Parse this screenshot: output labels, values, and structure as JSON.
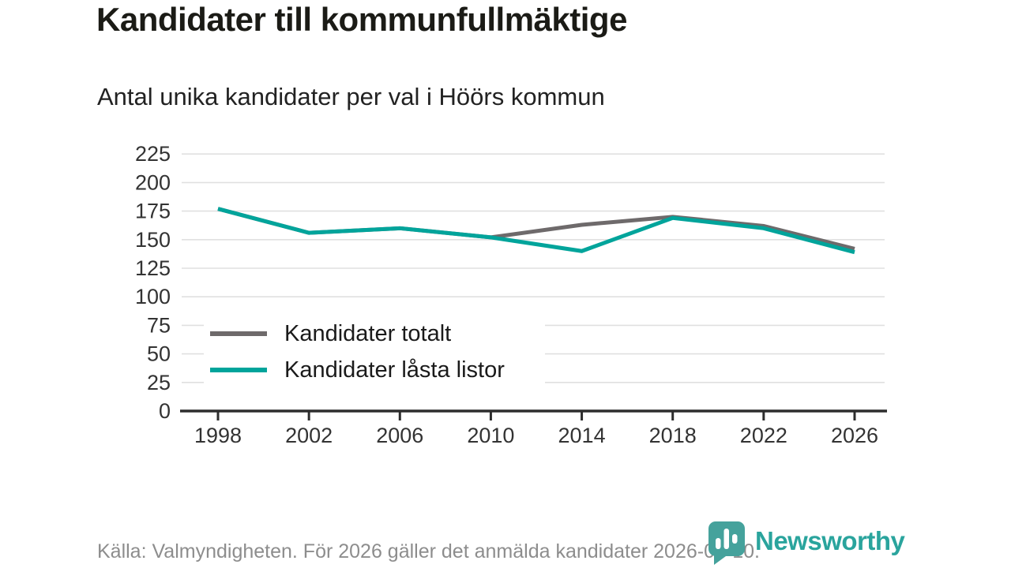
{
  "chart_data": {
    "type": "line",
    "title": "Kandidater till kommunfullmäktige",
    "subtitle": "Antal unika kandidater per val i Höörs kommun",
    "categories": [
      "1998",
      "2002",
      "2006",
      "2010",
      "2014",
      "2018",
      "2022",
      "2026"
    ],
    "series": [
      {
        "name": "Kandidater totalt",
        "color": "#6e6a6b",
        "values": [
          177,
          156,
          160,
          152,
          163,
          170,
          162,
          142
        ]
      },
      {
        "name": "Kandidater låsta listor",
        "color": "#00a49b",
        "values": [
          177,
          156,
          160,
          152,
          140,
          169,
          160,
          139
        ]
      }
    ],
    "ylim": [
      0,
      225
    ],
    "ytick_step": 25,
    "grid": true,
    "legend_position": "inside-bottom-left",
    "colors": {
      "grid": "#e0e0e0",
      "axis": "#2d2d2d",
      "tick_labels": "#333333"
    }
  },
  "footer": {
    "source": "Källa: Valmyndigheten. För 2026 gäller det anmälda kandidater 2026-04-10.",
    "brand_name": "Newsworthy",
    "brand_color": "#2aa49d",
    "brand_mark_color": "#45a29c"
  }
}
